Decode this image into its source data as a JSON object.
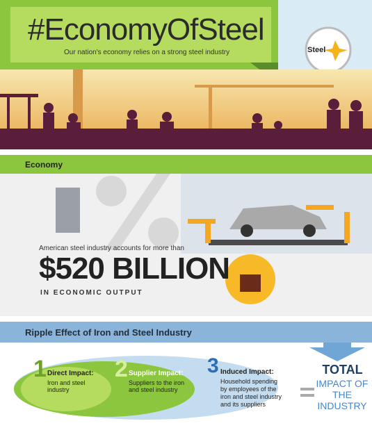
{
  "header": {
    "title": "#EconomyOfSteel",
    "subtitle": "Our nation's economy relies on a strong steel industry",
    "logo": "Steel"
  },
  "economy": {
    "heading": "Economy",
    "intro": "American steel industry accounts for more than",
    "amount": "$520 BILLION",
    "caption": "IN ECONOMIC OUTPUT"
  },
  "ripple": {
    "heading": "Ripple Effect of Iron and Steel Industry",
    "items": [
      {
        "number": "1",
        "title": "Direct Impact:",
        "text": "Iron and steel industry"
      },
      {
        "number": "2",
        "title": "Supplier Impact:",
        "text": "Suppliers to the iron and steel industry"
      },
      {
        "number": "3",
        "title": "Induced Impact:",
        "text": "Household spending by employees of the iron and steel industry and its suppliers"
      }
    ],
    "total": "TOTAL",
    "total_text": "IMPACT OF THE INDUSTRY"
  }
}
